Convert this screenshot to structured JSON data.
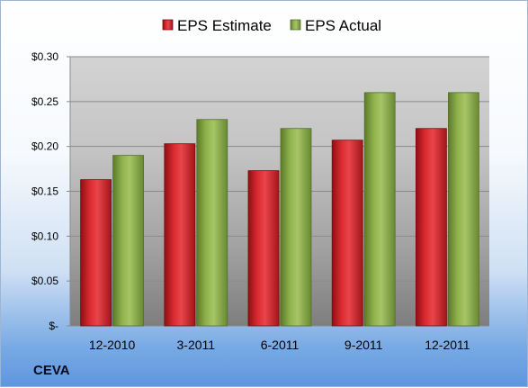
{
  "ticker": "CEVA",
  "chart_data": {
    "type": "bar",
    "categories": [
      "12-2010",
      "3-2011",
      "6-2011",
      "9-2011",
      "12-2011"
    ],
    "series": [
      {
        "name": "EPS Estimate",
        "values": [
          0.163,
          0.203,
          0.173,
          0.207,
          0.22
        ],
        "color": "#d11e26"
      },
      {
        "name": "EPS Actual",
        "values": [
          0.19,
          0.23,
          0.22,
          0.26,
          0.26
        ],
        "color": "#8db04a"
      }
    ],
    "y_ticks": [
      0,
      0.05,
      0.1,
      0.15,
      0.2,
      0.25,
      0.3
    ],
    "y_tick_labels": [
      "$-",
      "$0.05",
      "$0.10",
      "$0.15",
      "$0.20",
      "$0.25",
      "$0.30"
    ],
    "ylim": [
      0,
      0.3
    ],
    "grid": true,
    "legend_position": "top-center",
    "title": "",
    "xlabel": "",
    "ylabel": ""
  }
}
